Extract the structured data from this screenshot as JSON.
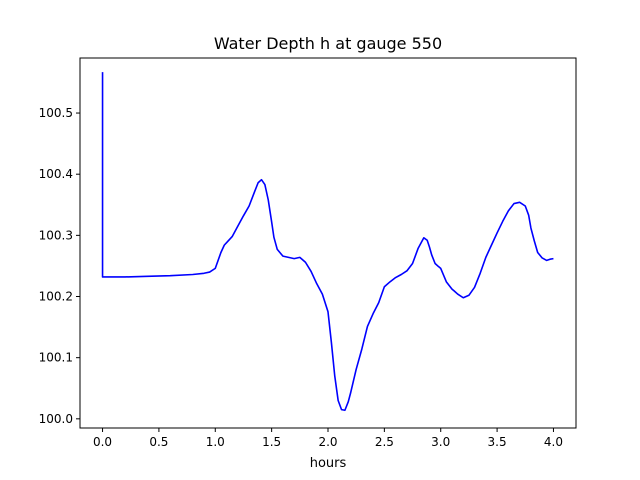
{
  "chart_data": {
    "type": "line",
    "title": "Water Depth h at gauge 550",
    "xlabel": "hours",
    "ylabel": "",
    "xlim": [
      -0.2,
      4.2
    ],
    "ylim": [
      99.985,
      100.59
    ],
    "xticks": [
      0.0,
      0.5,
      1.0,
      1.5,
      2.0,
      2.5,
      3.0,
      3.5,
      4.0
    ],
    "xtick_labels": [
      "0.0",
      "0.5",
      "1.0",
      "1.5",
      "2.0",
      "2.5",
      "3.0",
      "3.5",
      "4.0"
    ],
    "yticks": [
      100.0,
      100.1,
      100.2,
      100.3,
      100.4,
      100.5
    ],
    "ytick_labels": [
      "100.0",
      "100.1",
      "100.2",
      "100.3",
      "100.4",
      "100.5"
    ],
    "grid": false,
    "legend": "none",
    "series": [
      {
        "color": "#0000ff",
        "x": [
          0.0,
          0.0,
          0.01,
          0.2,
          0.4,
          0.6,
          0.8,
          0.9,
          0.95,
          1.0,
          1.05,
          1.08,
          1.1,
          1.15,
          1.2,
          1.25,
          1.3,
          1.35,
          1.38,
          1.41,
          1.44,
          1.47,
          1.5,
          1.52,
          1.55,
          1.6,
          1.65,
          1.7,
          1.75,
          1.8,
          1.85,
          1.9,
          1.95,
          2.0,
          2.03,
          2.06,
          2.09,
          2.12,
          2.15,
          2.18,
          2.2,
          2.25,
          2.3,
          2.35,
          2.4,
          2.45,
          2.5,
          2.55,
          2.6,
          2.65,
          2.7,
          2.75,
          2.8,
          2.85,
          2.88,
          2.9,
          2.92,
          2.95,
          2.98,
          3.0,
          3.05,
          3.1,
          3.12,
          3.15,
          3.2,
          3.25,
          3.3,
          3.35,
          3.4,
          3.45,
          3.5,
          3.55,
          3.6,
          3.65,
          3.7,
          3.75,
          3.78,
          3.8,
          3.83,
          3.86,
          3.9,
          3.94,
          3.97,
          4.0
        ],
        "y": [
          100.567,
          100.232,
          100.232,
          100.232,
          100.233,
          100.234,
          100.236,
          100.238,
          100.24,
          100.246,
          100.272,
          100.284,
          100.288,
          100.298,
          100.315,
          100.332,
          100.348,
          100.372,
          100.386,
          100.391,
          100.383,
          100.358,
          100.322,
          100.297,
          100.277,
          100.266,
          100.264,
          100.262,
          100.264,
          100.256,
          100.241,
          100.221,
          100.204,
          100.175,
          100.125,
          100.07,
          100.03,
          100.015,
          100.014,
          100.028,
          100.042,
          100.081,
          100.114,
          100.151,
          100.172,
          100.19,
          100.216,
          100.224,
          100.231,
          100.236,
          100.242,
          100.254,
          100.279,
          100.296,
          100.292,
          100.281,
          100.268,
          100.254,
          100.249,
          100.246,
          100.224,
          100.212,
          100.209,
          100.204,
          100.198,
          100.202,
          100.215,
          100.238,
          100.264,
          100.284,
          100.304,
          100.323,
          100.34,
          100.352,
          100.354,
          100.348,
          100.333,
          100.312,
          100.291,
          100.272,
          100.263,
          100.259,
          100.261,
          100.262
        ]
      }
    ]
  }
}
